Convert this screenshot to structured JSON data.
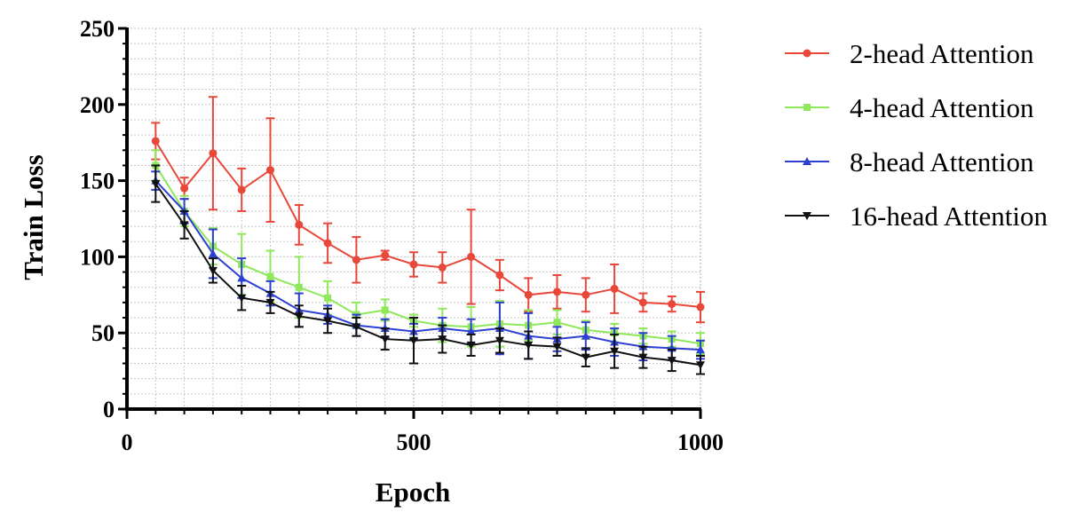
{
  "chart_data": {
    "type": "line",
    "title": "",
    "xlabel": "Epoch",
    "ylabel": "Train Loss",
    "xlim": [
      0,
      1000
    ],
    "ylim": [
      0,
      250
    ],
    "x_ticks": [
      0,
      500,
      1000
    ],
    "y_ticks": [
      0,
      50,
      100,
      150,
      200,
      250
    ],
    "grid": true,
    "legend_position": "right",
    "x": [
      50,
      100,
      150,
      200,
      250,
      300,
      350,
      400,
      450,
      500,
      550,
      600,
      650,
      700,
      750,
      800,
      850,
      900,
      950,
      1000
    ],
    "series": [
      {
        "name": "2-head Attention",
        "color": "#e8473a",
        "marker": "circle",
        "values": [
          176,
          145,
          168,
          144,
          157,
          121,
          109,
          98,
          101,
          95,
          93,
          100,
          88,
          75,
          77,
          75,
          79,
          70,
          69,
          67
        ],
        "errors": [
          12,
          7,
          37,
          14,
          34,
          13,
          13,
          15,
          3,
          8,
          10,
          31,
          10,
          11,
          11,
          11,
          16,
          6,
          5,
          10
        ]
      },
      {
        "name": "4-head Attention",
        "color": "#8ee85a",
        "marker": "square",
        "values": [
          160,
          130,
          107,
          95,
          87,
          80,
          73,
          62,
          65,
          58,
          55,
          54,
          56,
          55,
          57,
          52,
          50,
          48,
          46,
          43
        ],
        "errors": [
          10,
          10,
          12,
          20,
          17,
          20,
          11,
          8,
          7,
          4,
          11,
          13,
          15,
          10,
          8,
          6,
          6,
          5,
          5,
          7
        ]
      },
      {
        "name": "8-head Attention",
        "color": "#2e3fd4",
        "marker": "triangle-up",
        "values": [
          150,
          130,
          102,
          86,
          76,
          65,
          62,
          55,
          53,
          51,
          53,
          51,
          53,
          48,
          46,
          48,
          44,
          41,
          40,
          39
        ],
        "errors": [
          6,
          8,
          16,
          13,
          8,
          11,
          6,
          7,
          6,
          5,
          7,
          8,
          17,
          15,
          8,
          9,
          9,
          9,
          8,
          6
        ]
      },
      {
        "name": "16-head Attention",
        "color": "#111111",
        "marker": "triangle-down",
        "values": [
          148,
          121,
          91,
          73,
          70,
          61,
          58,
          54,
          46,
          45,
          46,
          42,
          45,
          42,
          41,
          34,
          38,
          34,
          32,
          29
        ],
        "errors": [
          12,
          9,
          8,
          8,
          7,
          7,
          8,
          6,
          7,
          15,
          9,
          7,
          8,
          9,
          6,
          6,
          11,
          7,
          7,
          6
        ]
      }
    ]
  }
}
